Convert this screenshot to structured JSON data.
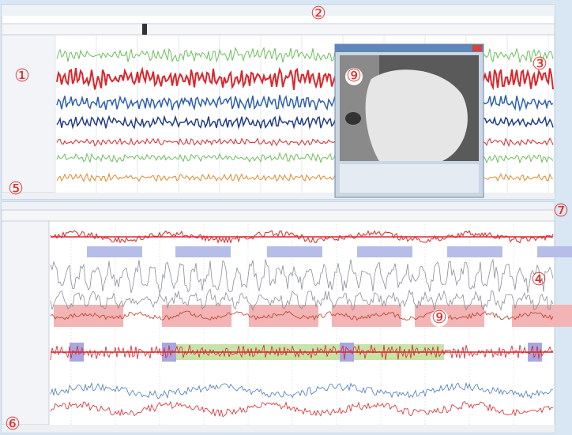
{
  "callouts": [
    {
      "label": "①"
    },
    {
      "label": "②"
    },
    {
      "label": "③"
    },
    {
      "label": "④"
    },
    {
      "label": "⑤"
    },
    {
      "label": "⑥"
    },
    {
      "label": "⑦"
    },
    {
      "label": "⑨"
    },
    {
      "label": "⑨"
    }
  ]
}
